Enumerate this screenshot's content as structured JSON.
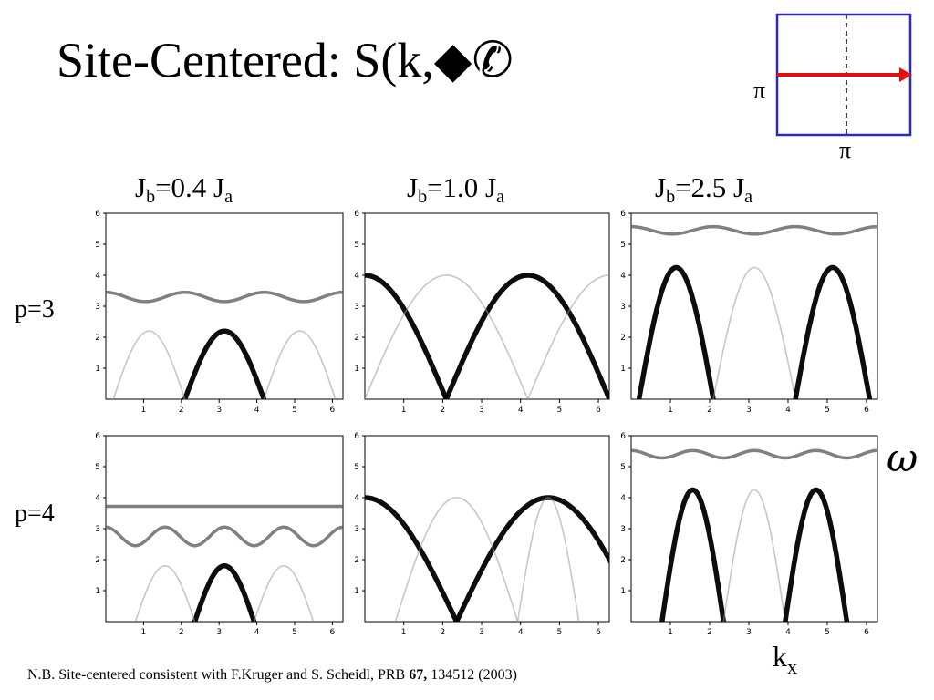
{
  "slide": {
    "title": "Site-Centered:  S(k,◆✆",
    "col_titles": [
      {
        "main": "J",
        "sub1": "b",
        "mid": "=0.4 J",
        "sub2": "a"
      },
      {
        "main": "J",
        "sub1": "b",
        "mid": "=1.0 J",
        "sub2": "a"
      },
      {
        "main": "J",
        "sub1": "b",
        "mid": "=2.5 J",
        "sub2": "a"
      }
    ],
    "row_labels": [
      "p=3",
      "p=4"
    ],
    "y_axis_symbol": "ω",
    "x_axis_symbol": {
      "main": "k",
      "sub": "x"
    },
    "footnote": {
      "text_before": "N.B.  Site-centered consistent with F.Kruger and S. Scheidl, PRB ",
      "bold": "67,",
      "text_after": " 134512 (2003)"
    }
  },
  "brillouin_zone": {
    "frame_color": "#2b2bb5",
    "arrow_color": "#e01010",
    "left_label": "π",
    "bottom_label": "π"
  },
  "chart_data": [
    {
      "type": "scatter",
      "row_label": "p=3",
      "col_label": "Jb=0.4 Ja",
      "xlim": [
        0,
        6.28
      ],
      "ylim": [
        0,
        6
      ],
      "xticks": [
        1,
        2,
        3,
        4,
        5,
        6
      ],
      "yticks": [
        1,
        2,
        3,
        4,
        5,
        6
      ],
      "bands": [
        {
          "kind": "arch",
          "zeros": [
            2.094,
            4.189
          ],
          "peak": 2.2,
          "intensity": "strong"
        },
        {
          "kind": "arch",
          "zeros": [
            0.2,
            2.094
          ],
          "peak": 2.2,
          "intensity": "faint"
        },
        {
          "kind": "arch",
          "zeros": [
            4.189,
            6.08
          ],
          "peak": 2.2,
          "intensity": "faint"
        },
        {
          "kind": "wave",
          "base": 3.3,
          "amp": 0.15,
          "period": 2.094,
          "intensity": "medium"
        }
      ]
    },
    {
      "type": "scatter",
      "row_label": "p=3",
      "col_label": "Jb=1.0 Ja",
      "xlim": [
        0,
        6.28
      ],
      "ylim": [
        0,
        6
      ],
      "xticks": [
        1,
        2,
        3,
        4,
        5,
        6
      ],
      "yticks": [
        1,
        2,
        3,
        4,
        5,
        6
      ],
      "bands": [
        {
          "kind": "arch",
          "zeros": [
            -2.094,
            2.094
          ],
          "peak": 4.0,
          "intensity": "strong"
        },
        {
          "kind": "arch",
          "zeros": [
            2.094,
            6.283
          ],
          "peak": 4.0,
          "intensity": "strong"
        },
        {
          "kind": "arch",
          "zeros": [
            0.0,
            4.189
          ],
          "peak": 4.0,
          "intensity": "faint"
        },
        {
          "kind": "arch",
          "zeros": [
            4.189,
            8.377
          ],
          "peak": 4.0,
          "intensity": "faint"
        }
      ]
    },
    {
      "type": "scatter",
      "row_label": "p=3",
      "col_label": "Jb=2.5 Ja",
      "xlim": [
        0,
        6.28
      ],
      "ylim": [
        0,
        6
      ],
      "xticks": [
        1,
        2,
        3,
        4,
        5,
        6
      ],
      "yticks": [
        1,
        2,
        3,
        4,
        5,
        6
      ],
      "bands": [
        {
          "kind": "arch",
          "zeros": [
            0.2,
            2.094
          ],
          "peak": 4.25,
          "intensity": "strong"
        },
        {
          "kind": "arch",
          "zeros": [
            2.094,
            4.189
          ],
          "peak": 4.25,
          "intensity": "faint"
        },
        {
          "kind": "arch",
          "zeros": [
            4.189,
            6.08
          ],
          "peak": 4.25,
          "intensity": "strong"
        },
        {
          "kind": "wave",
          "base": 5.45,
          "amp": 0.12,
          "period": 2.094,
          "intensity": "medium"
        }
      ]
    },
    {
      "type": "scatter",
      "row_label": "p=4",
      "col_label": "Jb=0.4 Ja",
      "xlim": [
        0,
        6.28
      ],
      "ylim": [
        0,
        6
      ],
      "xticks": [
        1,
        2,
        3,
        4,
        5,
        6
      ],
      "yticks": [
        1,
        2,
        3,
        4,
        5,
        6
      ],
      "bands": [
        {
          "kind": "arch",
          "zeros": [
            2.356,
            3.927
          ],
          "peak": 1.8,
          "intensity": "strong"
        },
        {
          "kind": "arch",
          "zeros": [
            0.785,
            2.356
          ],
          "peak": 1.8,
          "intensity": "faint"
        },
        {
          "kind": "arch",
          "zeros": [
            3.927,
            5.498
          ],
          "peak": 1.8,
          "intensity": "faint"
        },
        {
          "kind": "wave",
          "base": 2.75,
          "amp": 0.3,
          "period": 1.571,
          "intensity": "medium"
        },
        {
          "kind": "flat",
          "y": 3.72,
          "intensity": "medium"
        }
      ]
    },
    {
      "type": "scatter",
      "row_label": "p=4",
      "col_label": "Jb=1.0 Ja",
      "xlim": [
        0,
        6.28
      ],
      "ylim": [
        0,
        6
      ],
      "xticks": [
        1,
        2,
        3,
        4,
        5,
        6
      ],
      "yticks": [
        1,
        2,
        3,
        4,
        5,
        6
      ],
      "bands": [
        {
          "kind": "arch",
          "zeros": [
            -2.356,
            2.356
          ],
          "peak": 4.0,
          "intensity": "strong"
        },
        {
          "kind": "arch",
          "zeros": [
            2.356,
            7.069
          ],
          "peak": 4.0,
          "intensity": "strong"
        },
        {
          "kind": "arch",
          "zeros": [
            0.785,
            3.927
          ],
          "peak": 4.0,
          "intensity": "faint"
        },
        {
          "kind": "arch",
          "zeros": [
            3.927,
            5.498
          ],
          "peak": 4.0,
          "intensity": "faint"
        }
      ]
    },
    {
      "type": "scatter",
      "row_label": "p=4",
      "col_label": "Jb=2.5 Ja",
      "xlim": [
        0,
        6.28
      ],
      "ylim": [
        0,
        6
      ],
      "xticks": [
        1,
        2,
        3,
        4,
        5,
        6
      ],
      "yticks": [
        1,
        2,
        3,
        4,
        5,
        6
      ],
      "bands": [
        {
          "kind": "arch",
          "zeros": [
            0.785,
            2.356
          ],
          "peak": 4.25,
          "intensity": "strong"
        },
        {
          "kind": "arch",
          "zeros": [
            2.356,
            3.927
          ],
          "peak": 4.25,
          "intensity": "faint"
        },
        {
          "kind": "arch",
          "zeros": [
            3.927,
            5.498
          ],
          "peak": 4.25,
          "intensity": "strong"
        },
        {
          "kind": "wave",
          "base": 5.4,
          "amp": 0.12,
          "period": 1.571,
          "intensity": "medium"
        }
      ]
    }
  ]
}
